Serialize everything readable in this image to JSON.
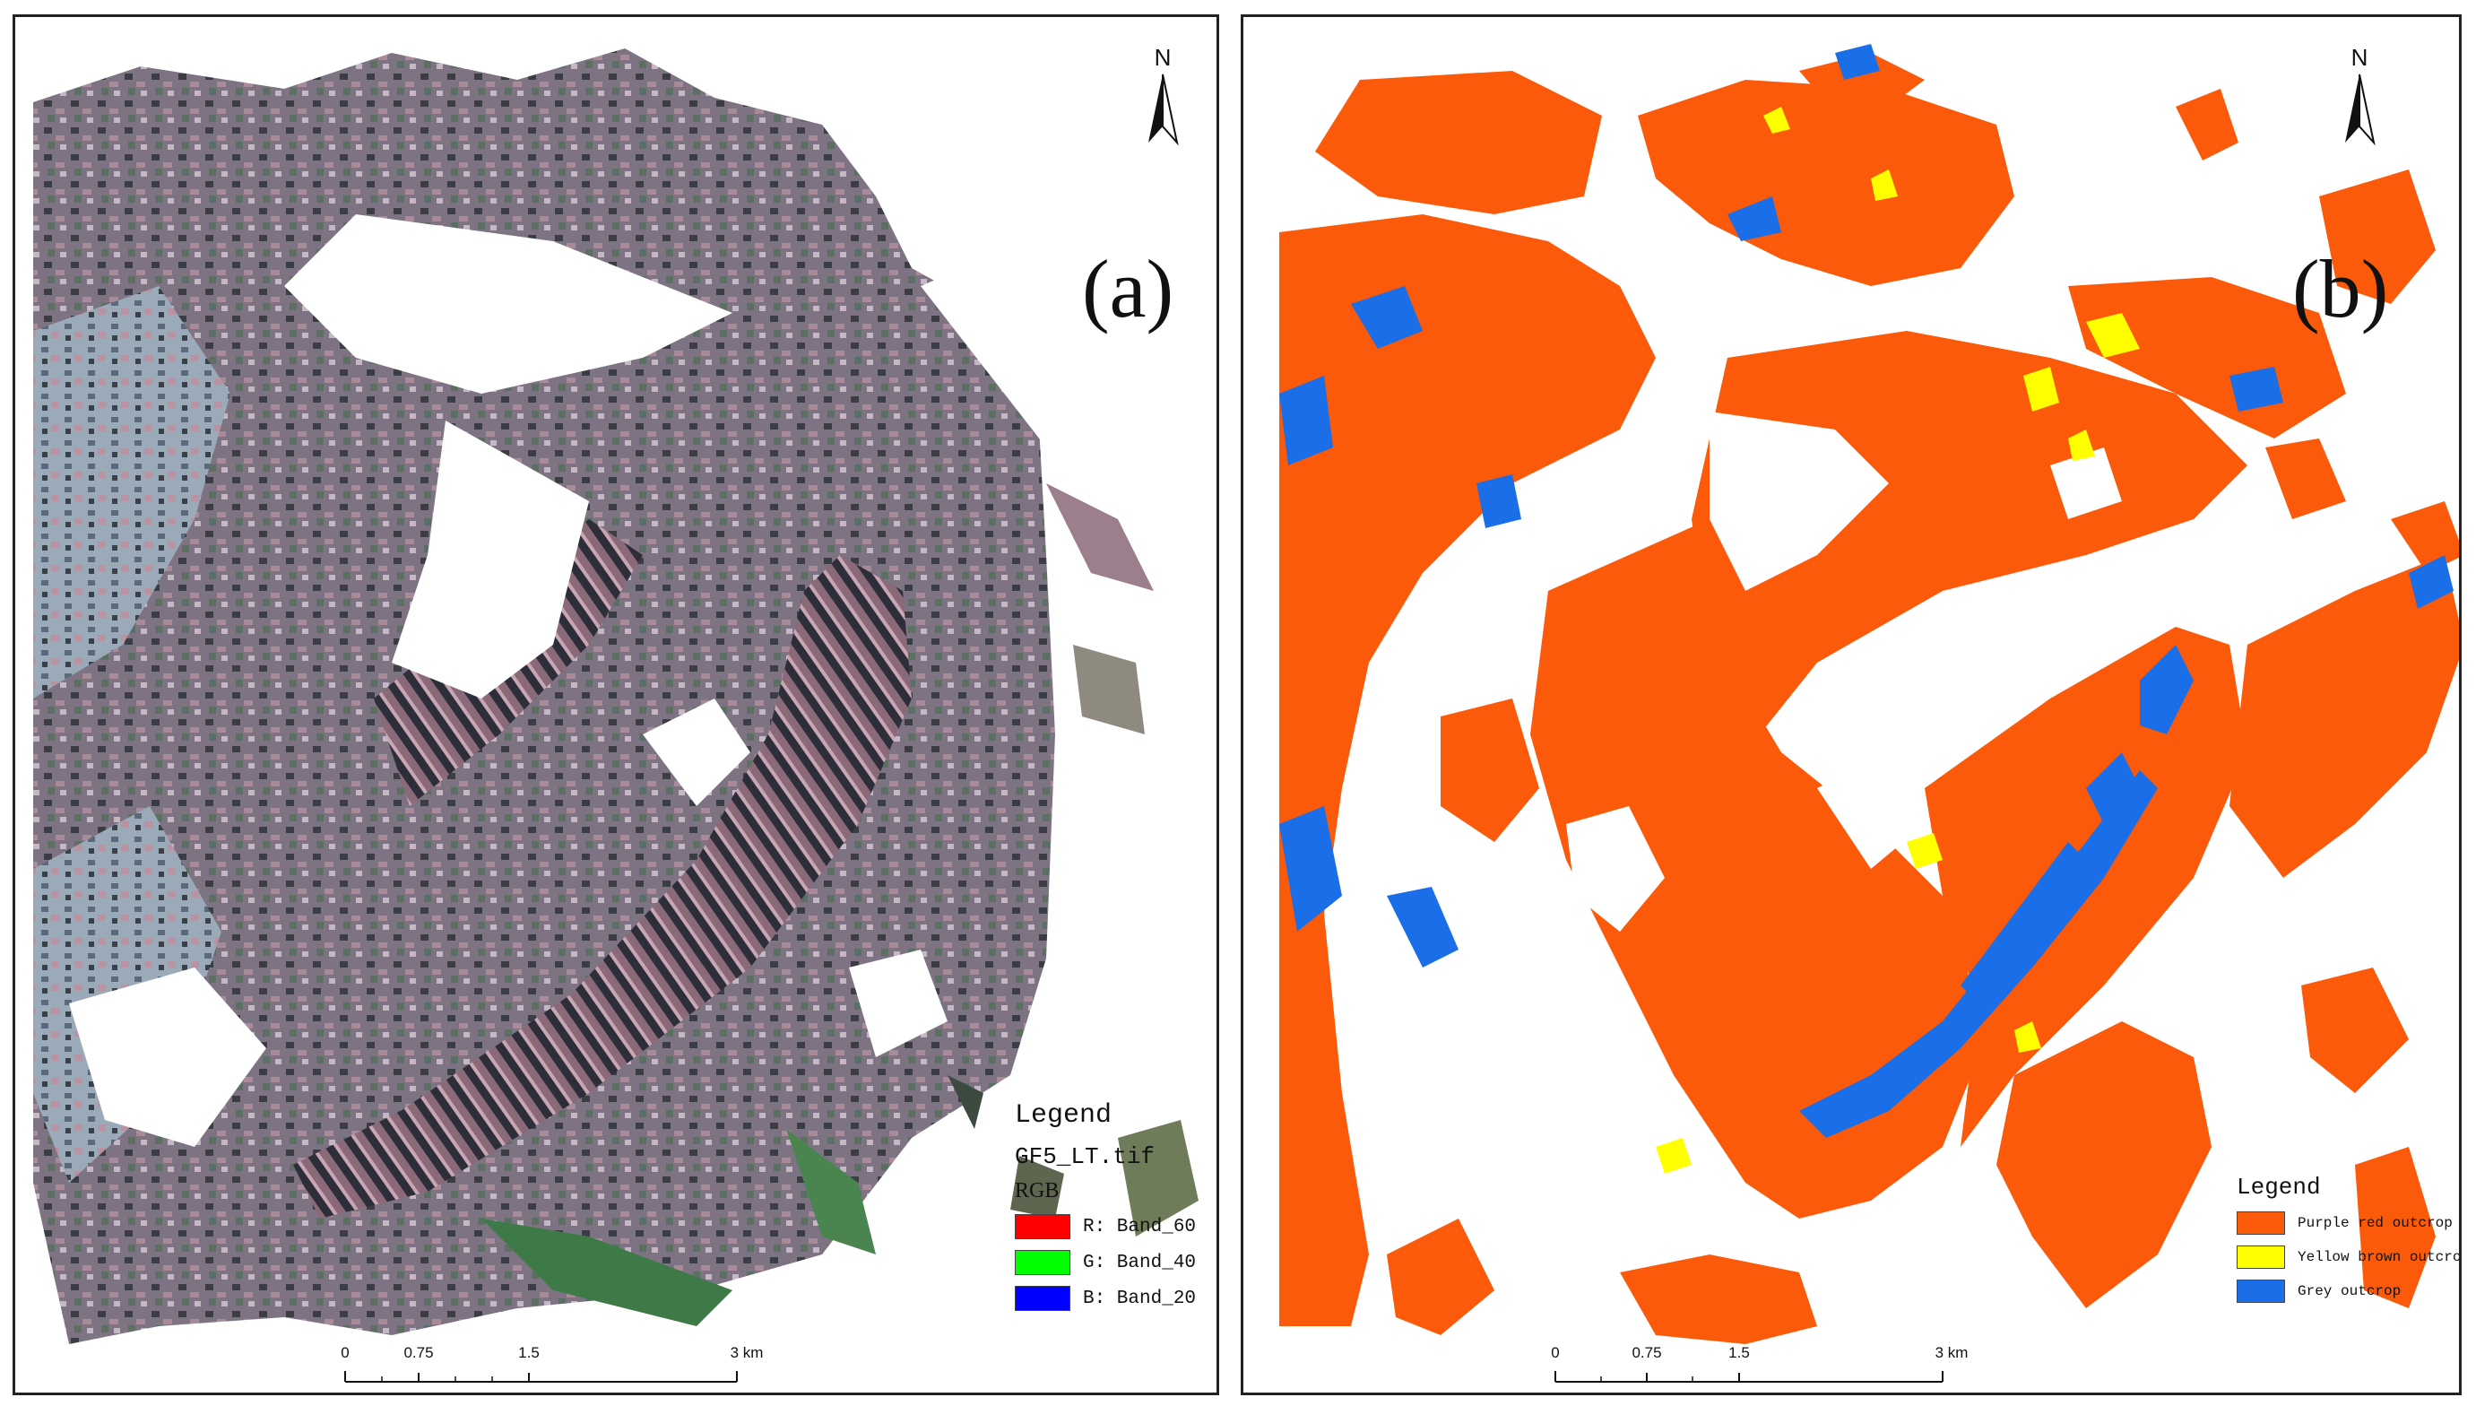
{
  "panel_a": {
    "label": "(a)",
    "north_label": "N",
    "legend": {
      "title": "Legend",
      "layer": "GF5_LT.tif",
      "group": "RGB",
      "items": [
        {
          "label": "R: Band_60",
          "color": "#ff0000"
        },
        {
          "label": "G: Band_40",
          "color": "#00ff00"
        },
        {
          "label": "B: Band_20",
          "color": "#0000ff"
        }
      ]
    },
    "scale": {
      "ticks": [
        "0",
        "0.75",
        "1.5",
        "3 km"
      ]
    }
  },
  "panel_b": {
    "label": "(b)",
    "north_label": "N",
    "legend": {
      "title": "Legend",
      "items": [
        {
          "label": "Purple red outcrop",
          "color": "#fa5a0a"
        },
        {
          "label": "Yellow brown outcrop",
          "color": "#ffff00"
        },
        {
          "label": "Grey outcrop",
          "color": "#1a6ee8"
        }
      ]
    },
    "scale": {
      "ticks": [
        "0",
        "0.75",
        "1.5",
        "3 km"
      ]
    }
  }
}
